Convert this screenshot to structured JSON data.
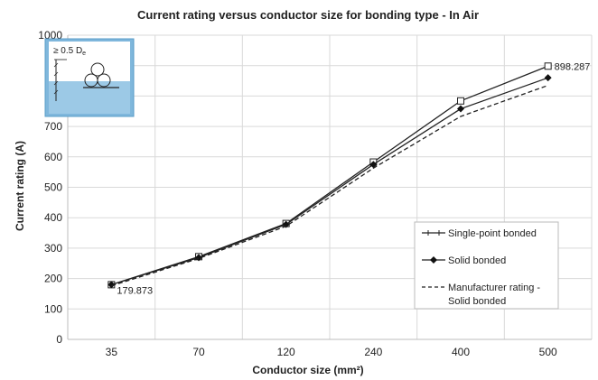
{
  "chart_data": {
    "type": "line",
    "title": "Current rating versus conductor size for bonding type - In Air",
    "xlabel": "Conductor size (mm²)",
    "ylabel": "Current rating (A)",
    "categories": [
      "35",
      "70",
      "120",
      "240",
      "400",
      "500"
    ],
    "ylim": [
      0,
      1000
    ],
    "yticks": [
      "0",
      "100",
      "200",
      "300",
      "400",
      "500",
      "600",
      "700",
      "800",
      "900",
      "1000"
    ],
    "grid": true,
    "legend_position": "lower-right",
    "series": [
      {
        "name": "Single-point bonded",
        "values": [
          179.873,
          272,
          381,
          583,
          784,
          898.287
        ],
        "style": "solid",
        "marker": "open-square",
        "color": "#222222"
      },
      {
        "name": "Solid bonded",
        "values": [
          179.873,
          269,
          378,
          575,
          758,
          860
        ],
        "style": "solid",
        "marker": "diamond",
        "color": "#222222"
      },
      {
        "name": "Manufacturer rating - Solid bonded",
        "values": [
          176,
          266,
          372,
          563,
          733,
          835
        ],
        "style": "dashed",
        "marker": "none",
        "color": "#222222"
      }
    ],
    "data_labels": [
      {
        "text": "179.873",
        "series": 0,
        "index": 0
      },
      {
        "text": "898.287",
        "series": 0,
        "index": 5
      }
    ],
    "inset": {
      "label": "≥ 0.5 D",
      "subscript": "e"
    }
  }
}
